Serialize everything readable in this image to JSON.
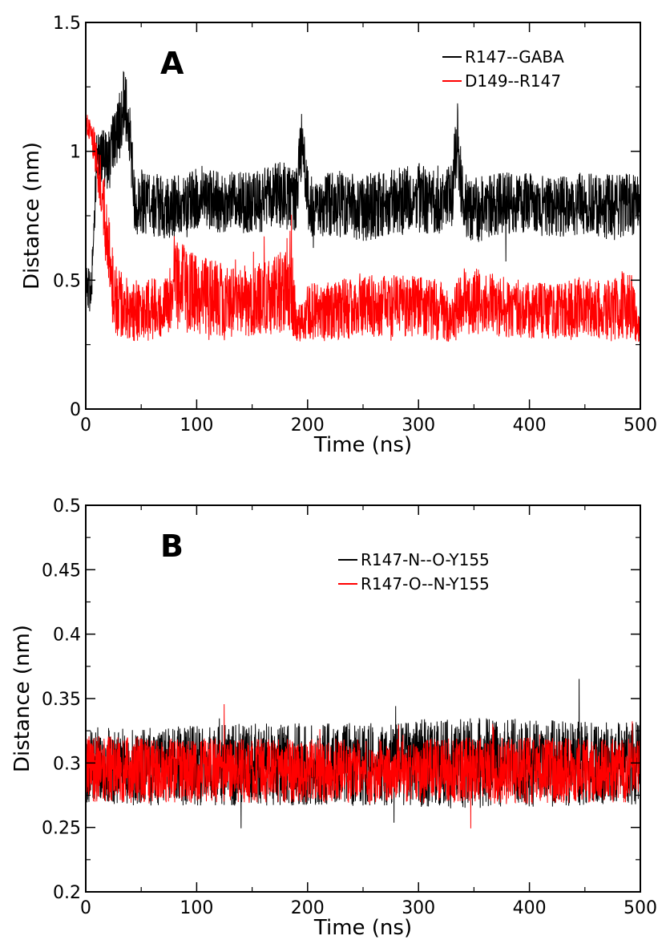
{
  "chart_data": [
    {
      "type": "line",
      "panel_label": "A",
      "xlabel": "Time (ns)",
      "ylabel": "Distance (nm)",
      "xlim": [
        0,
        500
      ],
      "ylim": [
        0,
        1.5
      ],
      "x_ticks": [
        0,
        100,
        200,
        300,
        400,
        500
      ],
      "y_ticks": [
        0,
        0.5,
        1,
        1.5
      ],
      "y_tick_labels": [
        "0",
        "0.5",
        "1",
        "1.5"
      ],
      "grid": false,
      "legend_position": "top-right",
      "series": [
        {
          "name": "R147--GABA",
          "color": "#000000",
          "x": [
            0,
            5,
            10,
            20,
            30,
            35,
            40,
            45,
            50,
            75,
            100,
            125,
            150,
            175,
            190,
            195,
            200,
            205,
            225,
            250,
            275,
            300,
            320,
            330,
            335,
            340,
            350,
            375,
            400,
            425,
            450,
            475,
            500
          ],
          "center": [
            0.48,
            0.45,
            1.0,
            0.95,
            1.1,
            1.2,
            1.05,
            0.75,
            0.8,
            0.78,
            0.82,
            0.8,
            0.8,
            0.83,
            0.82,
            1.05,
            0.82,
            0.78,
            0.8,
            0.78,
            0.8,
            0.82,
            0.8,
            0.83,
            1.05,
            0.8,
            0.77,
            0.8,
            0.8,
            0.78,
            0.8,
            0.78,
            0.8
          ],
          "spread": [
            0.08,
            0.08,
            0.1,
            0.12,
            0.14,
            0.14,
            0.12,
            0.13,
            0.13,
            0.12,
            0.12,
            0.12,
            0.12,
            0.13,
            0.13,
            0.14,
            0.12,
            0.12,
            0.13,
            0.13,
            0.13,
            0.14,
            0.13,
            0.13,
            0.15,
            0.12,
            0.13,
            0.12,
            0.12,
            0.12,
            0.12,
            0.13,
            0.12
          ]
        },
        {
          "name": "D149--R147",
          "color": "#ff0000",
          "x": [
            0,
            5,
            10,
            15,
            20,
            25,
            30,
            40,
            50,
            75,
            80,
            100,
            125,
            150,
            175,
            185,
            190,
            200,
            225,
            250,
            275,
            300,
            320,
            330,
            340,
            350,
            375,
            400,
            425,
            450,
            475,
            490,
            500
          ],
          "center": [
            1.1,
            1.08,
            0.95,
            0.85,
            0.6,
            0.45,
            0.4,
            0.38,
            0.38,
            0.4,
            0.5,
            0.45,
            0.42,
            0.42,
            0.45,
            0.5,
            0.32,
            0.38,
            0.38,
            0.4,
            0.4,
            0.4,
            0.38,
            0.35,
            0.42,
            0.42,
            0.4,
            0.38,
            0.38,
            0.4,
            0.38,
            0.42,
            0.3
          ],
          "spread": [
            0.06,
            0.06,
            0.1,
            0.12,
            0.18,
            0.14,
            0.14,
            0.12,
            0.12,
            0.12,
            0.2,
            0.16,
            0.14,
            0.14,
            0.16,
            0.2,
            0.08,
            0.11,
            0.12,
            0.12,
            0.12,
            0.12,
            0.12,
            0.1,
            0.13,
            0.13,
            0.12,
            0.11,
            0.11,
            0.12,
            0.12,
            0.15,
            0.05
          ]
        }
      ],
      "y_floor": 0.26
    },
    {
      "type": "line",
      "panel_label": "B",
      "xlabel": "Time (ns)",
      "ylabel": "Distance (nm)",
      "xlim": [
        0,
        500
      ],
      "ylim": [
        0.2,
        0.5
      ],
      "x_ticks": [
        0,
        100,
        200,
        300,
        400,
        500
      ],
      "y_ticks": [
        0.2,
        0.25,
        0.3,
        0.35,
        0.4,
        0.45,
        0.5
      ],
      "y_tick_labels": [
        "0.2",
        "0.25",
        "0.3",
        "0.35",
        "0.4",
        "0.45",
        "0.5"
      ],
      "grid": false,
      "legend_position": "top-right",
      "series": [
        {
          "name": "R147-N--O-Y155",
          "color": "#000000",
          "x": [
            0,
            50,
            100,
            150,
            200,
            250,
            300,
            350,
            400,
            450,
            500
          ],
          "center": [
            0.298,
            0.297,
            0.298,
            0.299,
            0.299,
            0.299,
            0.3,
            0.3,
            0.3,
            0.299,
            0.3
          ],
          "spread": [
            0.03,
            0.03,
            0.031,
            0.032,
            0.032,
            0.032,
            0.034,
            0.035,
            0.034,
            0.033,
            0.032
          ]
        },
        {
          "name": "R147-O--N-Y155",
          "color": "#ff0000",
          "x": [
            0,
            50,
            100,
            150,
            200,
            250,
            300,
            350,
            400,
            450,
            500
          ],
          "center": [
            0.295,
            0.294,
            0.294,
            0.294,
            0.294,
            0.294,
            0.294,
            0.294,
            0.294,
            0.294,
            0.294
          ],
          "spread": [
            0.026,
            0.026,
            0.025,
            0.025,
            0.025,
            0.025,
            0.025,
            0.026,
            0.026,
            0.025,
            0.025
          ]
        }
      ]
    }
  ]
}
